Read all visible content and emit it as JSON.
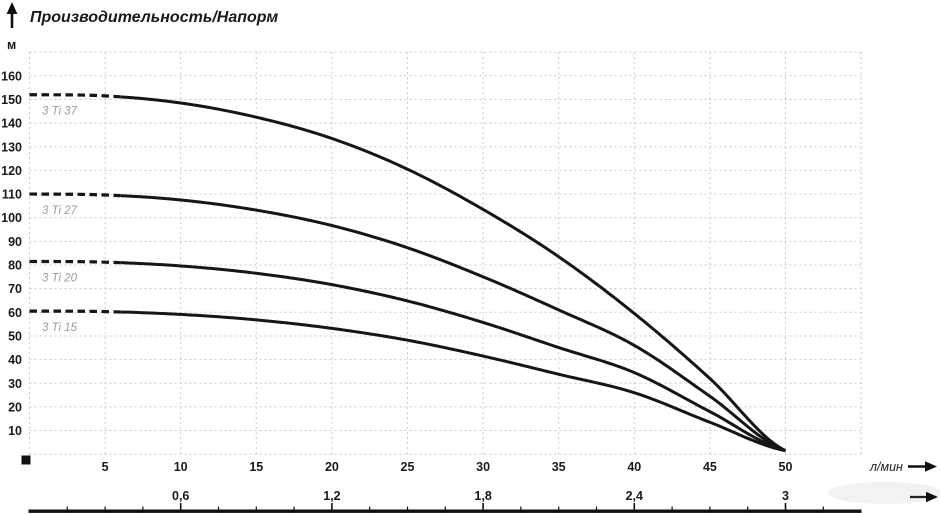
{
  "title": "Производительность/Напорм",
  "y_axis": {
    "unit": "м",
    "ticks": [
      10,
      20,
      30,
      40,
      50,
      60,
      70,
      80,
      90,
      100,
      110,
      120,
      130,
      140,
      150,
      160
    ]
  },
  "x_axis": {
    "unit": "л/мин",
    "ticks": [
      5,
      10,
      15,
      20,
      25,
      30,
      35,
      40,
      45,
      50
    ]
  },
  "x_axis2": {
    "labels": [
      {
        "text": "0,6",
        "q": 10
      },
      {
        "text": "1,2",
        "q": 20
      },
      {
        "text": "1,8",
        "q": 30
      },
      {
        "text": "2,4",
        "q": 40
      },
      {
        "text": "3",
        "q": 50
      }
    ]
  },
  "chart_data": {
    "type": "line",
    "x": [
      0,
      5,
      10,
      15,
      20,
      25,
      30,
      35,
      40,
      45,
      50
    ],
    "x_unit": "л/мин",
    "y_unit": "м",
    "xlim": [
      0,
      55
    ],
    "ylim": [
      0,
      170
    ],
    "grid": "dotted",
    "dashed_until_q": 6,
    "series": [
      {
        "name": "3 Ti 37",
        "values": [
          152,
          151.5,
          148.5,
          142.5,
          133.5,
          120.5,
          103.5,
          83.5,
          59.5,
          32,
          1.5
        ]
      },
      {
        "name": "3 Ti 27",
        "values": [
          110,
          109.6,
          107.5,
          103.2,
          96.7,
          87.3,
          75.0,
          61.0,
          46.0,
          24.5,
          1.5
        ]
      },
      {
        "name": "3 Ti 20",
        "values": [
          81.5,
          81.2,
          79.6,
          76.5,
          71.7,
          64.8,
          55.7,
          45.1,
          34.5,
          18.0,
          1.5
        ]
      },
      {
        "name": "3 Ti 15",
        "values": [
          60.5,
          60.3,
          59.1,
          56.8,
          53.2,
          48.2,
          41.5,
          33.8,
          26.0,
          13.5,
          1.5
        ]
      }
    ]
  },
  "colors": {
    "curve": "#161616",
    "grid": "#cacaca",
    "label": "#1a1a1a",
    "curve_label": "#9c9c9c",
    "bar": "#111111"
  }
}
